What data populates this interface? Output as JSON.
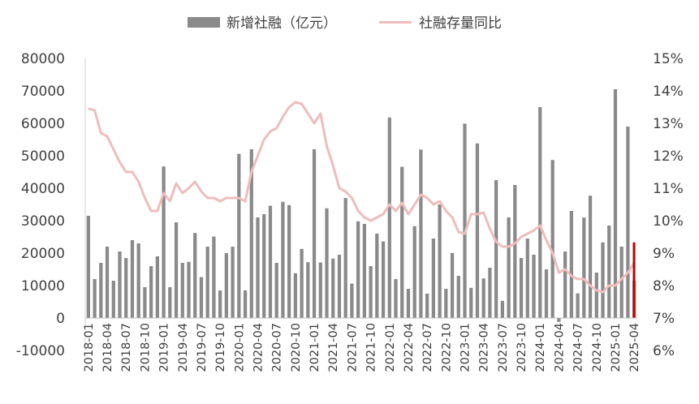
{
  "chart_data": {
    "type": "bar",
    "colors": {
      "bar": "#8a8a8a",
      "line": "#efbcbc",
      "highlight": "#c00000"
    },
    "legend": {
      "placement": "top",
      "bar_label": "新增社融（亿元）",
      "line_label": "社融存量同比"
    },
    "y_left": {
      "ticks": [
        "80000",
        "70000",
        "60000",
        "50000",
        "40000",
        "30000",
        "20000",
        "10000",
        "0",
        "-10000"
      ],
      "min": -10000,
      "max": 80000
    },
    "y_right": {
      "ticks": [
        "15%",
        "14%",
        "13%",
        "12%",
        "11%",
        "10%",
        "9%",
        "8%",
        "7%",
        "6%"
      ],
      "min": 6,
      "max": 15
    },
    "x_tick_labels": [
      "2018-01",
      "2018-04",
      "2018-07",
      "2018-10",
      "2019-01",
      "2019-04",
      "2019-07",
      "2019-10",
      "2020-01",
      "2020-04",
      "2020-07",
      "2020-10",
      "2021-01",
      "2021-04",
      "2021-07",
      "2021-10",
      "2022-01",
      "2022-04",
      "2022-07",
      "2022-10",
      "2023-01",
      "2023-04",
      "2023-07",
      "2023-10",
      "2024-01",
      "2024-04",
      "2024-07",
      "2024-10",
      "2025-01",
      "2025-04"
    ],
    "grid": false,
    "highlight_last": true,
    "series": [
      {
        "name": "新增社融（亿元）",
        "kind": "bar",
        "values": [
          31500,
          12000,
          17000,
          22000,
          11500,
          20500,
          18500,
          24000,
          23000,
          9500,
          16000,
          19000,
          46700,
          9500,
          29500,
          17000,
          17300,
          26200,
          12600,
          22000,
          25100,
          8500,
          20000,
          22000,
          50600,
          8500,
          52000,
          31000,
          32000,
          34600,
          17000,
          35800,
          34800,
          13800,
          21300,
          17200,
          52000,
          17100,
          33800,
          18300,
          19500,
          37000,
          10600,
          29800,
          29000,
          16000,
          26000,
          23600,
          61800,
          12000,
          46600,
          9000,
          28300,
          51900,
          7500,
          24500,
          35000,
          9000,
          20000,
          13000,
          59900,
          9300,
          53800,
          12200,
          15500,
          42500,
          5300,
          31000,
          41000,
          18500,
          24500,
          19500,
          65000,
          15000,
          48700,
          -1200,
          20500,
          33000,
          7600,
          31000,
          37700,
          14000,
          23300,
          28500,
          70500,
          22000,
          59000,
          11500
        ]
      },
      {
        "name": "社融存量同比",
        "kind": "line",
        "values": [
          13.45,
          13.4,
          12.7,
          12.6,
          12.2,
          11.8,
          11.5,
          11.5,
          11.2,
          10.7,
          10.3,
          10.3,
          10.85,
          10.6,
          11.15,
          10.85,
          11.0,
          11.2,
          10.9,
          10.7,
          10.7,
          10.6,
          10.7,
          10.7,
          10.7,
          10.6,
          11.5,
          12.0,
          12.5,
          12.75,
          12.85,
          13.2,
          13.5,
          13.65,
          13.6,
          13.3,
          13.0,
          13.3,
          12.3,
          11.7,
          11.0,
          10.9,
          10.7,
          10.3,
          10.1,
          10.0,
          10.1,
          10.2,
          10.5,
          10.3,
          10.55,
          10.2,
          10.5,
          10.8,
          10.7,
          10.5,
          10.6,
          10.3,
          10.1,
          9.65,
          9.6,
          10.2,
          10.2,
          10.25,
          9.75,
          9.35,
          9.2,
          9.2,
          9.3,
          9.5,
          9.6,
          9.7,
          9.85,
          9.4,
          9.0,
          8.4,
          8.5,
          8.3,
          8.2,
          8.2,
          8.0,
          7.85,
          7.8,
          8.0,
          8.0,
          8.2,
          8.4,
          8.7
        ]
      }
    ]
  }
}
